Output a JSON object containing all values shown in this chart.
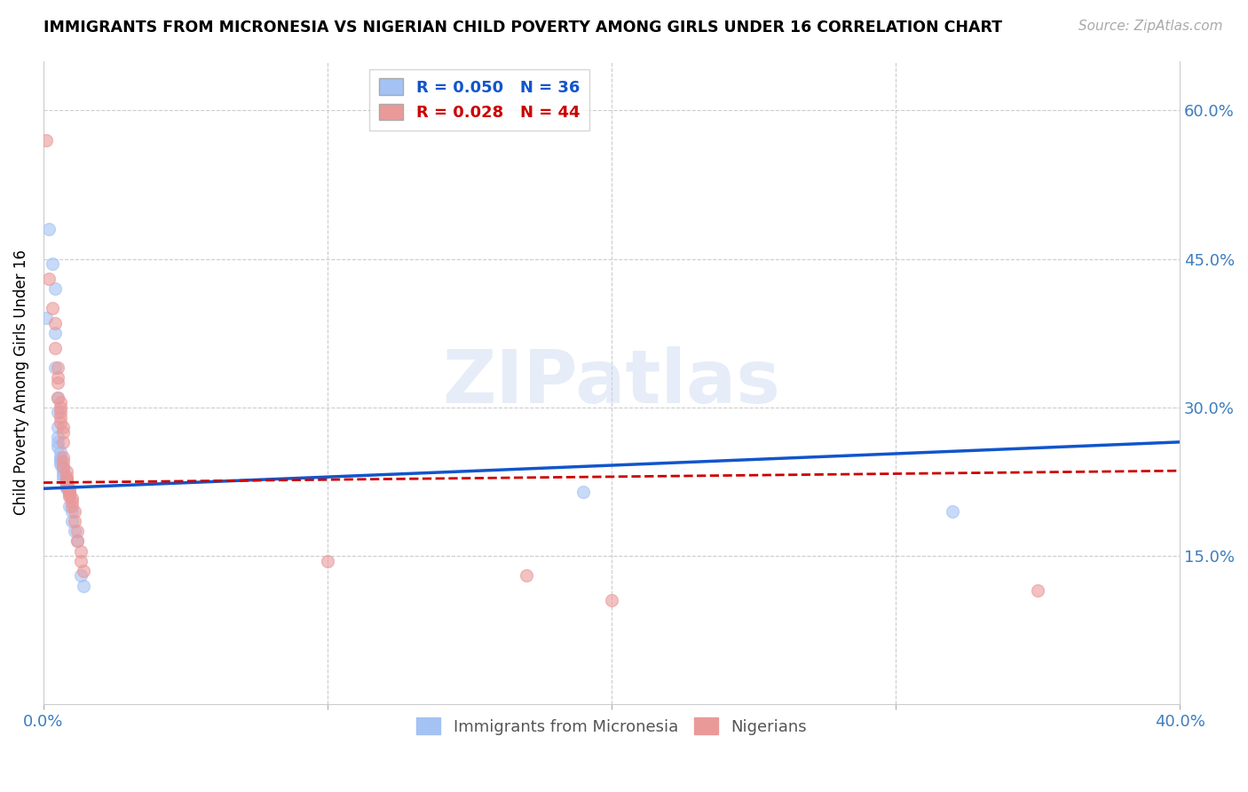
{
  "title": "IMMIGRANTS FROM MICRONESIA VS NIGERIAN CHILD POVERTY AMONG GIRLS UNDER 16 CORRELATION CHART",
  "source": "Source: ZipAtlas.com",
  "ylabel": "Child Poverty Among Girls Under 16",
  "y_ticks": [
    0.0,
    0.15,
    0.3,
    0.45,
    0.6
  ],
  "y_tick_labels": [
    "",
    "15.0%",
    "30.0%",
    "45.0%",
    "60.0%"
  ],
  "xlim": [
    0.0,
    0.4
  ],
  "ylim": [
    0.0,
    0.65
  ],
  "watermark": "ZIPatlas",
  "legend_blue_R": "R = 0.050",
  "legend_blue_N": "N = 36",
  "legend_pink_R": "R = 0.028",
  "legend_pink_N": "N = 44",
  "blue_color": "#a4c2f4",
  "pink_color": "#ea9999",
  "blue_line_color": "#1155cc",
  "pink_line_color": "#cc0000",
  "blue_line_start_y": 0.218,
  "blue_line_end_y": 0.265,
  "pink_line_start_y": 0.224,
  "pink_line_end_y": 0.236,
  "scatter_blue": [
    [
      0.001,
      0.39
    ],
    [
      0.002,
      0.48
    ],
    [
      0.003,
      0.445
    ],
    [
      0.004,
      0.42
    ],
    [
      0.004,
      0.375
    ],
    [
      0.004,
      0.34
    ],
    [
      0.005,
      0.31
    ],
    [
      0.005,
      0.295
    ],
    [
      0.005,
      0.28
    ],
    [
      0.005,
      0.27
    ],
    [
      0.005,
      0.265
    ],
    [
      0.005,
      0.26
    ],
    [
      0.006,
      0.255
    ],
    [
      0.006,
      0.25
    ],
    [
      0.006,
      0.248
    ],
    [
      0.006,
      0.245
    ],
    [
      0.006,
      0.242
    ],
    [
      0.007,
      0.24
    ],
    [
      0.007,
      0.238
    ],
    [
      0.007,
      0.235
    ],
    [
      0.007,
      0.232
    ],
    [
      0.007,
      0.228
    ],
    [
      0.008,
      0.225
    ],
    [
      0.008,
      0.222
    ],
    [
      0.008,
      0.22
    ],
    [
      0.008,
      0.218
    ],
    [
      0.009,
      0.215
    ],
    [
      0.009,
      0.2
    ],
    [
      0.01,
      0.195
    ],
    [
      0.01,
      0.185
    ],
    [
      0.011,
      0.175
    ],
    [
      0.012,
      0.165
    ],
    [
      0.013,
      0.13
    ],
    [
      0.014,
      0.12
    ],
    [
      0.19,
      0.215
    ],
    [
      0.32,
      0.195
    ]
  ],
  "scatter_pink": [
    [
      0.001,
      0.57
    ],
    [
      0.002,
      0.43
    ],
    [
      0.003,
      0.4
    ],
    [
      0.004,
      0.385
    ],
    [
      0.004,
      0.36
    ],
    [
      0.005,
      0.34
    ],
    [
      0.005,
      0.33
    ],
    [
      0.005,
      0.325
    ],
    [
      0.005,
      0.31
    ],
    [
      0.006,
      0.305
    ],
    [
      0.006,
      0.3
    ],
    [
      0.006,
      0.295
    ],
    [
      0.006,
      0.29
    ],
    [
      0.006,
      0.285
    ],
    [
      0.007,
      0.28
    ],
    [
      0.007,
      0.275
    ],
    [
      0.007,
      0.265
    ],
    [
      0.007,
      0.25
    ],
    [
      0.007,
      0.245
    ],
    [
      0.007,
      0.24
    ],
    [
      0.008,
      0.235
    ],
    [
      0.008,
      0.23
    ],
    [
      0.008,
      0.228
    ],
    [
      0.008,
      0.225
    ],
    [
      0.008,
      0.222
    ],
    [
      0.008,
      0.22
    ],
    [
      0.009,
      0.218
    ],
    [
      0.009,
      0.215
    ],
    [
      0.009,
      0.212
    ],
    [
      0.009,
      0.21
    ],
    [
      0.01,
      0.208
    ],
    [
      0.01,
      0.205
    ],
    [
      0.01,
      0.2
    ],
    [
      0.011,
      0.195
    ],
    [
      0.011,
      0.185
    ],
    [
      0.012,
      0.175
    ],
    [
      0.012,
      0.165
    ],
    [
      0.013,
      0.155
    ],
    [
      0.013,
      0.145
    ],
    [
      0.014,
      0.135
    ],
    [
      0.1,
      0.145
    ],
    [
      0.17,
      0.13
    ],
    [
      0.2,
      0.105
    ],
    [
      0.35,
      0.115
    ]
  ]
}
